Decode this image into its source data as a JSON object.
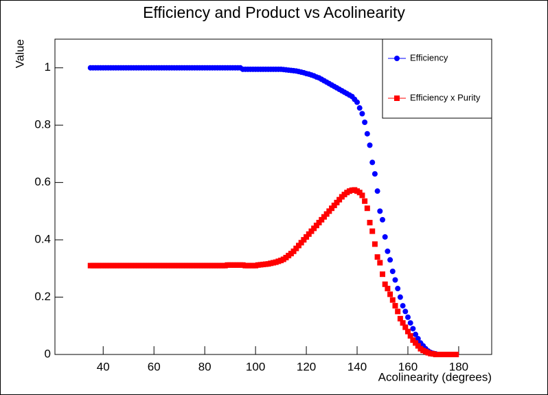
{
  "chart_data": {
    "type": "scatter",
    "title": "Efficiency and Product vs Acolinearity",
    "x_label": "Acolinearity (degrees)",
    "y_label": "Value",
    "xlim": [
      21,
      193
    ],
    "ylim": [
      0,
      1.1
    ],
    "xticks": [
      40,
      60,
      80,
      100,
      120,
      140,
      160,
      180
    ],
    "yticks": [
      0,
      0.2,
      0.4,
      0.6,
      0.8,
      1
    ],
    "legend": "top-right",
    "x": [
      35,
      36,
      37,
      38,
      39,
      40,
      41,
      42,
      43,
      44,
      45,
      46,
      47,
      48,
      49,
      50,
      51,
      52,
      53,
      54,
      55,
      56,
      57,
      58,
      59,
      60,
      61,
      62,
      63,
      64,
      65,
      66,
      67,
      68,
      69,
      70,
      71,
      72,
      73,
      74,
      75,
      76,
      77,
      78,
      79,
      80,
      81,
      82,
      83,
      84,
      85,
      86,
      87,
      88,
      89,
      90,
      91,
      92,
      93,
      94,
      95,
      96,
      97,
      98,
      99,
      100,
      101,
      102,
      103,
      104,
      105,
      106,
      107,
      108,
      109,
      110,
      111,
      112,
      113,
      114,
      115,
      116,
      117,
      118,
      119,
      120,
      121,
      122,
      123,
      124,
      125,
      126,
      127,
      128,
      129,
      130,
      131,
      132,
      133,
      134,
      135,
      136,
      137,
      138,
      139,
      140,
      141,
      142,
      143,
      144,
      145,
      146,
      147,
      148,
      149,
      150,
      151,
      152,
      153,
      154,
      155,
      156,
      157,
      158,
      159,
      160,
      161,
      162,
      163,
      164,
      165,
      166,
      167,
      168,
      169,
      170,
      171,
      172,
      173,
      174,
      175,
      176,
      177,
      178,
      179
    ],
    "series": [
      {
        "name": "Efficiency",
        "color": "#0000ff",
        "marker": "circle",
        "values": [
          1,
          1,
          1,
          1,
          1,
          1,
          1,
          1,
          1,
          1,
          1,
          1,
          1,
          1,
          1,
          1,
          1,
          1,
          1,
          1,
          1,
          1,
          1,
          1,
          1,
          1,
          1,
          1,
          1,
          1,
          1,
          1,
          1,
          1,
          1,
          1,
          1,
          1,
          1,
          1,
          1,
          1,
          1,
          1,
          1,
          1,
          1,
          1,
          1,
          1,
          1,
          1,
          1,
          1,
          1,
          1,
          1,
          1,
          1,
          1,
          0.995,
          0.995,
          0.995,
          0.995,
          0.995,
          0.995,
          0.995,
          0.995,
          0.995,
          0.995,
          0.995,
          0.995,
          0.995,
          0.995,
          0.995,
          0.995,
          0.994,
          0.993,
          0.992,
          0.991,
          0.99,
          0.989,
          0.987,
          0.985,
          0.983,
          0.98,
          0.978,
          0.975,
          0.972,
          0.968,
          0.965,
          0.96,
          0.955,
          0.95,
          0.945,
          0.94,
          0.935,
          0.93,
          0.925,
          0.92,
          0.915,
          0.91,
          0.905,
          0.9,
          0.89,
          0.88,
          0.86,
          0.84,
          0.81,
          0.77,
          0.73,
          0.67,
          0.63,
          0.57,
          0.5,
          0.47,
          0.41,
          0.36,
          0.33,
          0.29,
          0.26,
          0.23,
          0.2,
          0.17,
          0.15,
          0.13,
          0.11,
          0.09,
          0.07,
          0.055,
          0.04,
          0.03,
          0.02,
          0.012,
          0.007,
          0.004,
          0.002,
          0,
          0,
          0,
          0,
          0,
          0,
          0,
          0
        ]
      },
      {
        "name": "Efficiency x Purity",
        "color": "#ff0000",
        "marker": "square",
        "values": [
          0.31,
          0.31,
          0.31,
          0.31,
          0.31,
          0.31,
          0.31,
          0.31,
          0.31,
          0.31,
          0.31,
          0.31,
          0.31,
          0.31,
          0.31,
          0.31,
          0.31,
          0.31,
          0.31,
          0.31,
          0.31,
          0.31,
          0.31,
          0.31,
          0.31,
          0.31,
          0.31,
          0.31,
          0.31,
          0.31,
          0.31,
          0.31,
          0.31,
          0.31,
          0.31,
          0.31,
          0.31,
          0.31,
          0.31,
          0.31,
          0.31,
          0.31,
          0.31,
          0.31,
          0.31,
          0.31,
          0.31,
          0.31,
          0.31,
          0.31,
          0.31,
          0.31,
          0.31,
          0.31,
          0.312,
          0.312,
          0.312,
          0.312,
          0.312,
          0.312,
          0.312,
          0.31,
          0.31,
          0.31,
          0.31,
          0.31,
          0.312,
          0.313,
          0.314,
          0.315,
          0.316,
          0.318,
          0.32,
          0.322,
          0.325,
          0.328,
          0.332,
          0.338,
          0.345,
          0.352,
          0.36,
          0.37,
          0.38,
          0.39,
          0.4,
          0.41,
          0.42,
          0.43,
          0.44,
          0.45,
          0.46,
          0.47,
          0.48,
          0.49,
          0.5,
          0.51,
          0.52,
          0.53,
          0.54,
          0.55,
          0.558,
          0.565,
          0.57,
          0.573,
          0.574,
          0.57,
          0.565,
          0.555,
          0.535,
          0.51,
          0.46,
          0.43,
          0.385,
          0.34,
          0.32,
          0.28,
          0.245,
          0.23,
          0.21,
          0.19,
          0.17,
          0.15,
          0.125,
          0.11,
          0.095,
          0.08,
          0.065,
          0.05,
          0.04,
          0.03,
          0.02,
          0.014,
          0.01,
          0.006,
          0.003,
          0.002,
          0,
          0,
          0,
          0,
          0,
          0,
          0,
          0,
          0
        ]
      }
    ]
  }
}
